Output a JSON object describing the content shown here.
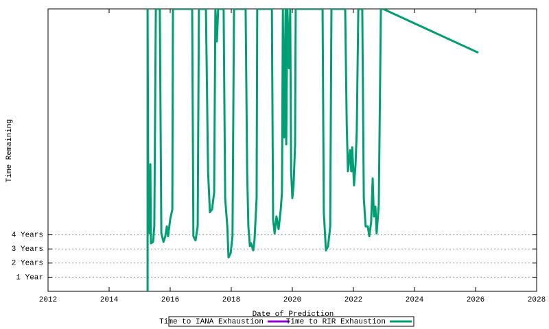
{
  "chart_data": {
    "type": "line",
    "xlabel": "Date of Prediction",
    "ylabel": "Time Remaining",
    "xlim": [
      2012,
      2028
    ],
    "xticks": [
      2012,
      2014,
      2016,
      2018,
      2020,
      2022,
      2024,
      2026,
      2028
    ],
    "ylim": [
      0,
      20
    ],
    "yticks": [
      {
        "value": 1,
        "label": "1 Year"
      },
      {
        "value": 2,
        "label": "2 Years"
      },
      {
        "value": 3,
        "label": "3 Years"
      },
      {
        "value": 4,
        "label": "4 Years"
      }
    ],
    "grid": true,
    "legend": "bottom",
    "series": [
      {
        "name": "Time to IANA Exhaustion",
        "color": "#9400d3",
        "x": [],
        "values": []
      },
      {
        "name": "Time to RIR Exhaustion",
        "color": "#009e73",
        "x": [
          2015.26,
          2015.26,
          2015.28,
          2015.33,
          2015.35,
          2015.37,
          2015.44,
          2015.48,
          2015.53,
          2015.66,
          2015.71,
          2015.78,
          2015.84,
          2015.89,
          2015.93,
          2016.0,
          2016.07,
          2016.09,
          2016.72,
          2016.76,
          2016.83,
          2016.9,
          2016.94,
          2017.17,
          2017.24,
          2017.3,
          2017.37,
          2017.44,
          2017.48,
          2017.53,
          2017.57,
          2017.75,
          2017.8,
          2017.87,
          2017.91,
          2017.98,
          2018.04,
          2018.09,
          2018.47,
          2018.52,
          2018.56,
          2018.61,
          2018.65,
          2018.72,
          2018.76,
          2018.83,
          2018.85,
          2019.33,
          2019.37,
          2019.42,
          2019.48,
          2019.55,
          2019.62,
          2019.66,
          2019.69,
          2019.73,
          2019.78,
          2019.8,
          2019.82,
          2019.84,
          2019.89,
          2019.93,
          2019.96,
          2020.0,
          2020.04,
          2020.09,
          2020.11,
          2020.99,
          2021.03,
          2021.1,
          2021.17,
          2021.24,
          2021.28,
          2021.73,
          2021.78,
          2021.82,
          2021.89,
          2021.93,
          2021.96,
          2022.02,
          2022.07,
          2022.11,
          2022.16,
          2022.29,
          2022.34,
          2022.4,
          2022.47,
          2022.52,
          2022.58,
          2022.63,
          2022.67,
          2022.72,
          2022.76,
          2022.83,
          2022.9,
          2022.97,
          2026.09
        ],
        "values": [
          0,
          20,
          8.0,
          4.1,
          9.0,
          3.4,
          3.5,
          4.6,
          20,
          20,
          4.1,
          3.5,
          3.9,
          4.6,
          3.9,
          5.1,
          5.8,
          20,
          20,
          3.9,
          3.6,
          4.6,
          20,
          20,
          8.5,
          5.6,
          5.8,
          7.0,
          20,
          17.7,
          20,
          20,
          6.6,
          4.6,
          2.4,
          2.7,
          3.9,
          20,
          20,
          8.5,
          4.6,
          3.2,
          3.4,
          2.9,
          3.6,
          6.6,
          20,
          20,
          5.1,
          4.1,
          5.3,
          4.4,
          5.8,
          7.0,
          20,
          10.9,
          20,
          10.4,
          15.8,
          20,
          15.8,
          20,
          8.5,
          6.6,
          7.5,
          10.4,
          20,
          20,
          5.6,
          2.9,
          3.2,
          4.6,
          20,
          20,
          11.9,
          8.5,
          10.0,
          8.5,
          10.2,
          7.5,
          9.0,
          11.4,
          20,
          20,
          6.6,
          4.6,
          4.6,
          3.9,
          4.9,
          8.0,
          5.3,
          6.0,
          4.1,
          6.1,
          20,
          20,
          16.9
        ]
      }
    ]
  }
}
